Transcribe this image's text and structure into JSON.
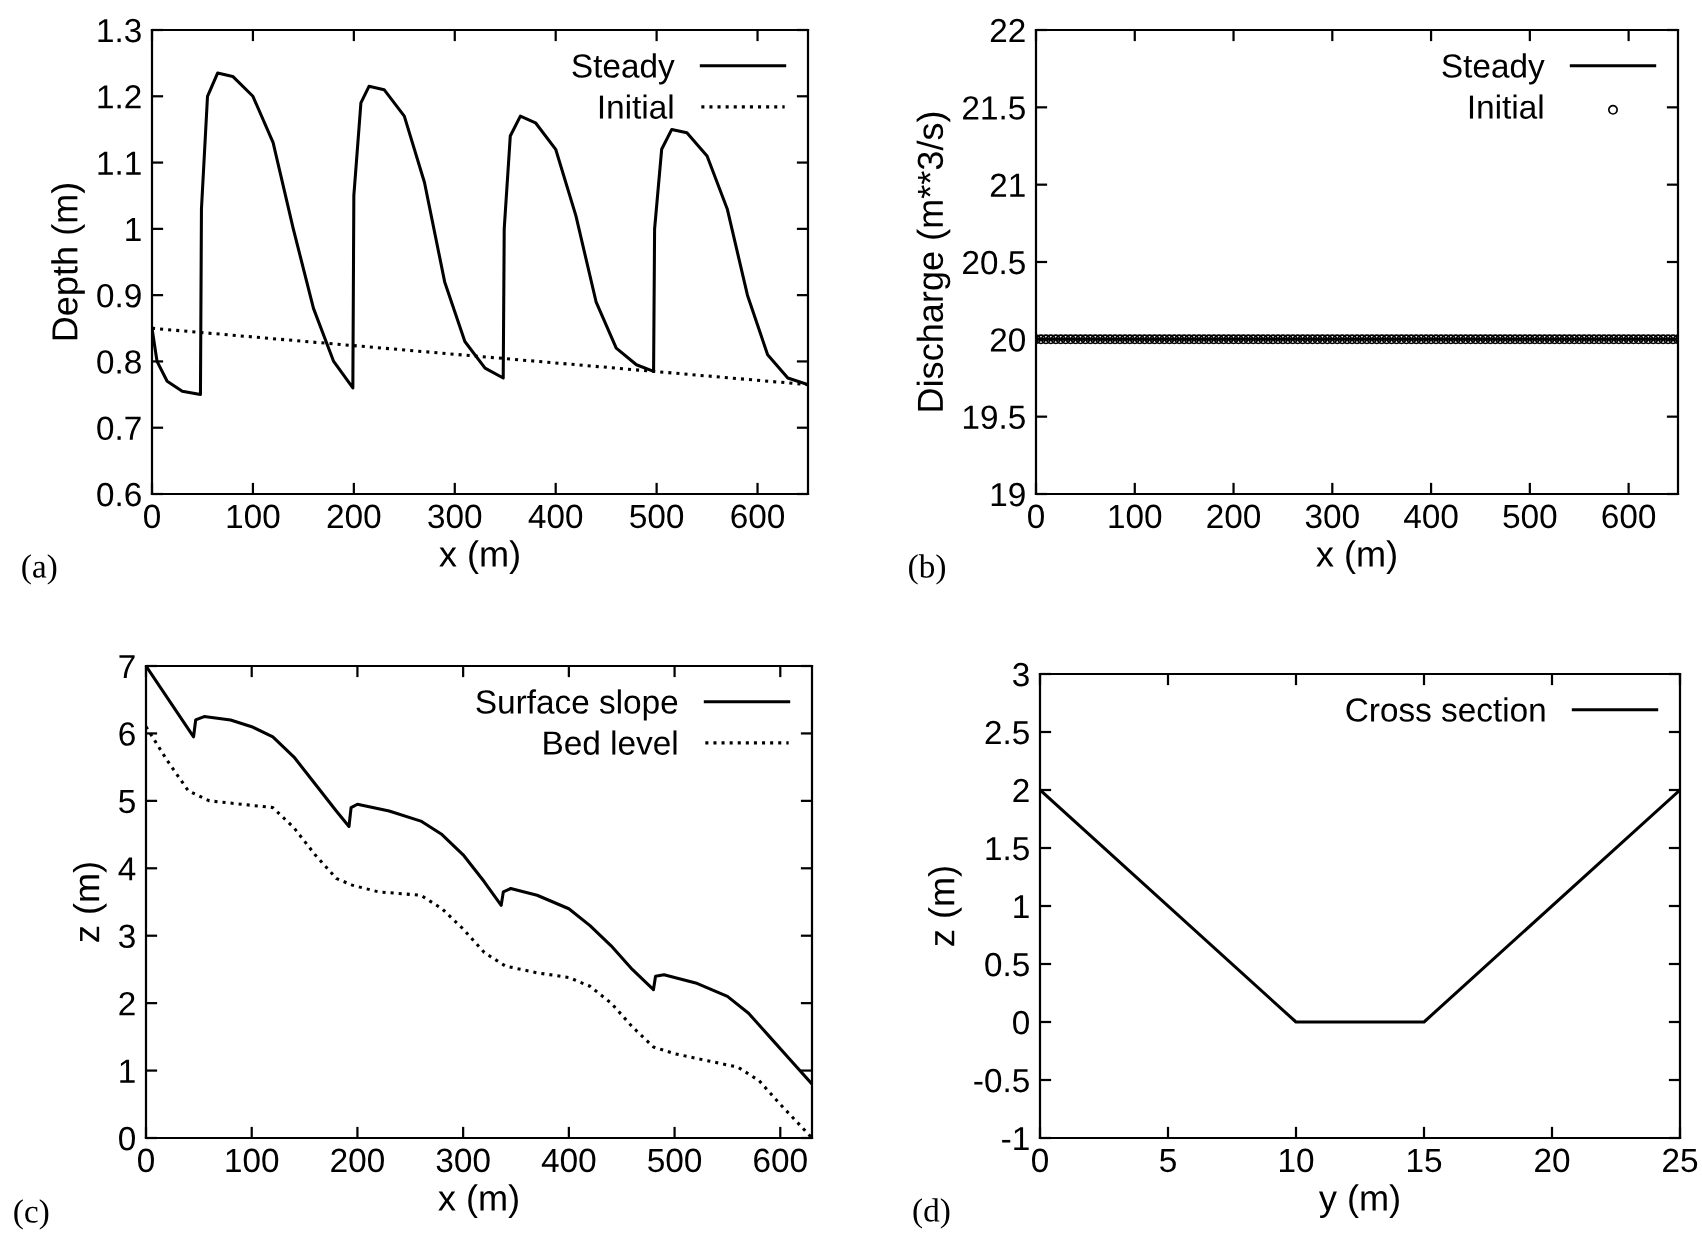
{
  "chart_data": [
    {
      "type": "line",
      "xlabel": "x (m)",
      "ylabel": "Depth (m)",
      "xlim": [
        0,
        650
      ],
      "xticks": [
        0,
        100,
        200,
        300,
        400,
        500,
        600
      ],
      "ylim": [
        0.6,
        1.3
      ],
      "yticks": [
        0.6,
        0.7,
        0.8,
        0.9,
        1,
        1.1,
        1.2,
        1.3
      ],
      "legend": "top right",
      "grid": false,
      "annotations": [
        "(a)"
      ],
      "series": [
        {
          "name": "Steady",
          "color": "#000000",
          "line_style": "solid",
          "x": [
            0,
            5,
            15,
            30,
            48,
            49,
            55,
            65,
            80,
            100,
            120,
            140,
            160,
            180,
            199,
            200,
            207,
            215,
            230,
            250,
            270,
            290,
            310,
            330,
            348,
            349,
            355,
            365,
            380,
            400,
            420,
            440,
            460,
            480,
            497,
            498,
            505,
            515,
            530,
            550,
            570,
            590,
            610,
            630,
            650
          ],
          "values": [
            0.85,
            0.8,
            0.77,
            0.755,
            0.75,
            1.03,
            1.2,
            1.235,
            1.23,
            1.2,
            1.13,
            1.0,
            0.88,
            0.8,
            0.76,
            1.05,
            1.19,
            1.215,
            1.21,
            1.17,
            1.07,
            0.92,
            0.83,
            0.79,
            0.775,
            1.0,
            1.14,
            1.17,
            1.16,
            1.12,
            1.02,
            0.89,
            0.82,
            0.795,
            0.785,
            1.0,
            1.12,
            1.15,
            1.145,
            1.11,
            1.03,
            0.9,
            0.81,
            0.775,
            0.765
          ]
        },
        {
          "name": "Initial",
          "color": "#000000",
          "line_style": "dotted",
          "x": [
            0,
            650
          ],
          "values": [
            0.85,
            0.765
          ]
        }
      ]
    },
    {
      "type": "line",
      "xlabel": "x (m)",
      "ylabel": "Discharge (m**3/s)",
      "xlim": [
        0,
        650
      ],
      "xticks": [
        0,
        100,
        200,
        300,
        400,
        500,
        600
      ],
      "ylim": [
        19,
        22
      ],
      "yticks": [
        19,
        19.5,
        20,
        20.5,
        21,
        21.5,
        22
      ],
      "legend": "top right",
      "grid": false,
      "annotations": [
        "(b)"
      ],
      "series": [
        {
          "name": "Steady",
          "color": "#000000",
          "line_style": "solid",
          "x": [
            0,
            650
          ],
          "values": [
            20,
            20
          ]
        },
        {
          "name": "Initial",
          "type": "scatter",
          "color": "#000000",
          "marker": "circle",
          "x": [
            0,
            5,
            10,
            15,
            20,
            25,
            30,
            35,
            40,
            45,
            50,
            55,
            60,
            65,
            70,
            75,
            80,
            85,
            90,
            95,
            100,
            105,
            110,
            115,
            120,
            125,
            130,
            135,
            140,
            145,
            150,
            155,
            160,
            165,
            170,
            175,
            180,
            185,
            190,
            195,
            200,
            205,
            210,
            215,
            220,
            225,
            230,
            235,
            240,
            245,
            250,
            255,
            260,
            265,
            270,
            275,
            280,
            285,
            290,
            295,
            300,
            305,
            310,
            315,
            320,
            325,
            330,
            335,
            340,
            345,
            350,
            355,
            360,
            365,
            370,
            375,
            380,
            385,
            390,
            395,
            400,
            405,
            410,
            415,
            420,
            425,
            430,
            435,
            440,
            445,
            450,
            455,
            460,
            465,
            470,
            475,
            480,
            485,
            490,
            495,
            500,
            505,
            510,
            515,
            520,
            525,
            530,
            535,
            540,
            545,
            550,
            555,
            560,
            565,
            570,
            575,
            580,
            585,
            590,
            595,
            600,
            605,
            610,
            615,
            620,
            625,
            630,
            635,
            640,
            645,
            650
          ],
          "values": [
            20,
            20,
            20,
            20,
            20,
            20,
            20,
            20,
            20,
            20,
            20,
            20,
            20,
            20,
            20,
            20,
            20,
            20,
            20,
            20,
            20,
            20,
            20,
            20,
            20,
            20,
            20,
            20,
            20,
            20,
            20,
            20,
            20,
            20,
            20,
            20,
            20,
            20,
            20,
            20,
            20,
            20,
            20,
            20,
            20,
            20,
            20,
            20,
            20,
            20,
            20,
            20,
            20,
            20,
            20,
            20,
            20,
            20,
            20,
            20,
            20,
            20,
            20,
            20,
            20,
            20,
            20,
            20,
            20,
            20,
            20,
            20,
            20,
            20,
            20,
            20,
            20,
            20,
            20,
            20,
            20,
            20,
            20,
            20,
            20,
            20,
            20,
            20,
            20,
            20,
            20,
            20,
            20,
            20,
            20,
            20,
            20,
            20,
            20,
            20,
            20,
            20,
            20,
            20,
            20,
            20,
            20,
            20,
            20,
            20,
            20,
            20,
            20,
            20,
            20,
            20,
            20,
            20,
            20,
            20,
            20,
            20,
            20,
            20,
            20,
            20,
            20,
            20,
            20,
            20,
            20
          ]
        }
      ]
    },
    {
      "type": "line",
      "xlabel": "x (m)",
      "ylabel": "z (m)",
      "xlim": [
        0,
        630
      ],
      "xticks": [
        0,
        100,
        200,
        300,
        400,
        500,
        600
      ],
      "ylim": [
        0,
        7
      ],
      "yticks": [
        0,
        1,
        2,
        3,
        4,
        5,
        6,
        7
      ],
      "legend": "top right",
      "grid": false,
      "annotations": [
        "(c)"
      ],
      "series": [
        {
          "name": "Surface slope",
          "color": "#000000",
          "line_style": "solid",
          "x": [
            0,
            45,
            47,
            55,
            80,
            100,
            120,
            140,
            160,
            180,
            192,
            194,
            200,
            230,
            260,
            280,
            300,
            320,
            336,
            338,
            345,
            370,
            400,
            420,
            440,
            460,
            480,
            482,
            490,
            520,
            550,
            570,
            590,
            610,
            630
          ],
          "values": [
            7.0,
            5.95,
            6.2,
            6.25,
            6.2,
            6.1,
            5.95,
            5.65,
            5.25,
            4.85,
            4.62,
            4.9,
            4.95,
            4.85,
            4.7,
            4.5,
            4.2,
            3.8,
            3.45,
            3.65,
            3.7,
            3.6,
            3.4,
            3.15,
            2.85,
            2.5,
            2.2,
            2.4,
            2.42,
            2.3,
            2.1,
            1.85,
            1.5,
            1.15,
            0.8
          ]
        },
        {
          "name": "Bed level",
          "color": "#000000",
          "line_style": "dotted",
          "x": [
            0,
            20,
            40,
            60,
            90,
            120,
            140,
            160,
            180,
            195,
            220,
            260,
            280,
            300,
            320,
            340,
            370,
            400,
            420,
            440,
            460,
            480,
            500,
            530,
            560,
            580,
            600,
            615,
            630
          ],
          "values": [
            6.1,
            5.6,
            5.15,
            5.0,
            4.95,
            4.9,
            4.6,
            4.2,
            3.85,
            3.75,
            3.65,
            3.6,
            3.4,
            3.1,
            2.75,
            2.55,
            2.45,
            2.38,
            2.25,
            2.0,
            1.65,
            1.35,
            1.25,
            1.15,
            1.05,
            0.85,
            0.5,
            0.25,
            0.0
          ]
        }
      ]
    },
    {
      "type": "line",
      "xlabel": "y (m)",
      "ylabel": "z (m)",
      "xlim": [
        0,
        25
      ],
      "xticks": [
        0,
        5,
        10,
        15,
        20,
        25
      ],
      "ylim": [
        -1,
        3
      ],
      "yticks": [
        -1,
        -0.5,
        0,
        0.5,
        1,
        1.5,
        2,
        2.5,
        3
      ],
      "legend": "top right",
      "grid": false,
      "annotations": [
        "(d)"
      ],
      "series": [
        {
          "name": "Cross section",
          "color": "#000000",
          "line_style": "solid",
          "x": [
            0,
            10,
            15,
            25
          ],
          "values": [
            2,
            0,
            0,
            2
          ]
        }
      ]
    }
  ]
}
